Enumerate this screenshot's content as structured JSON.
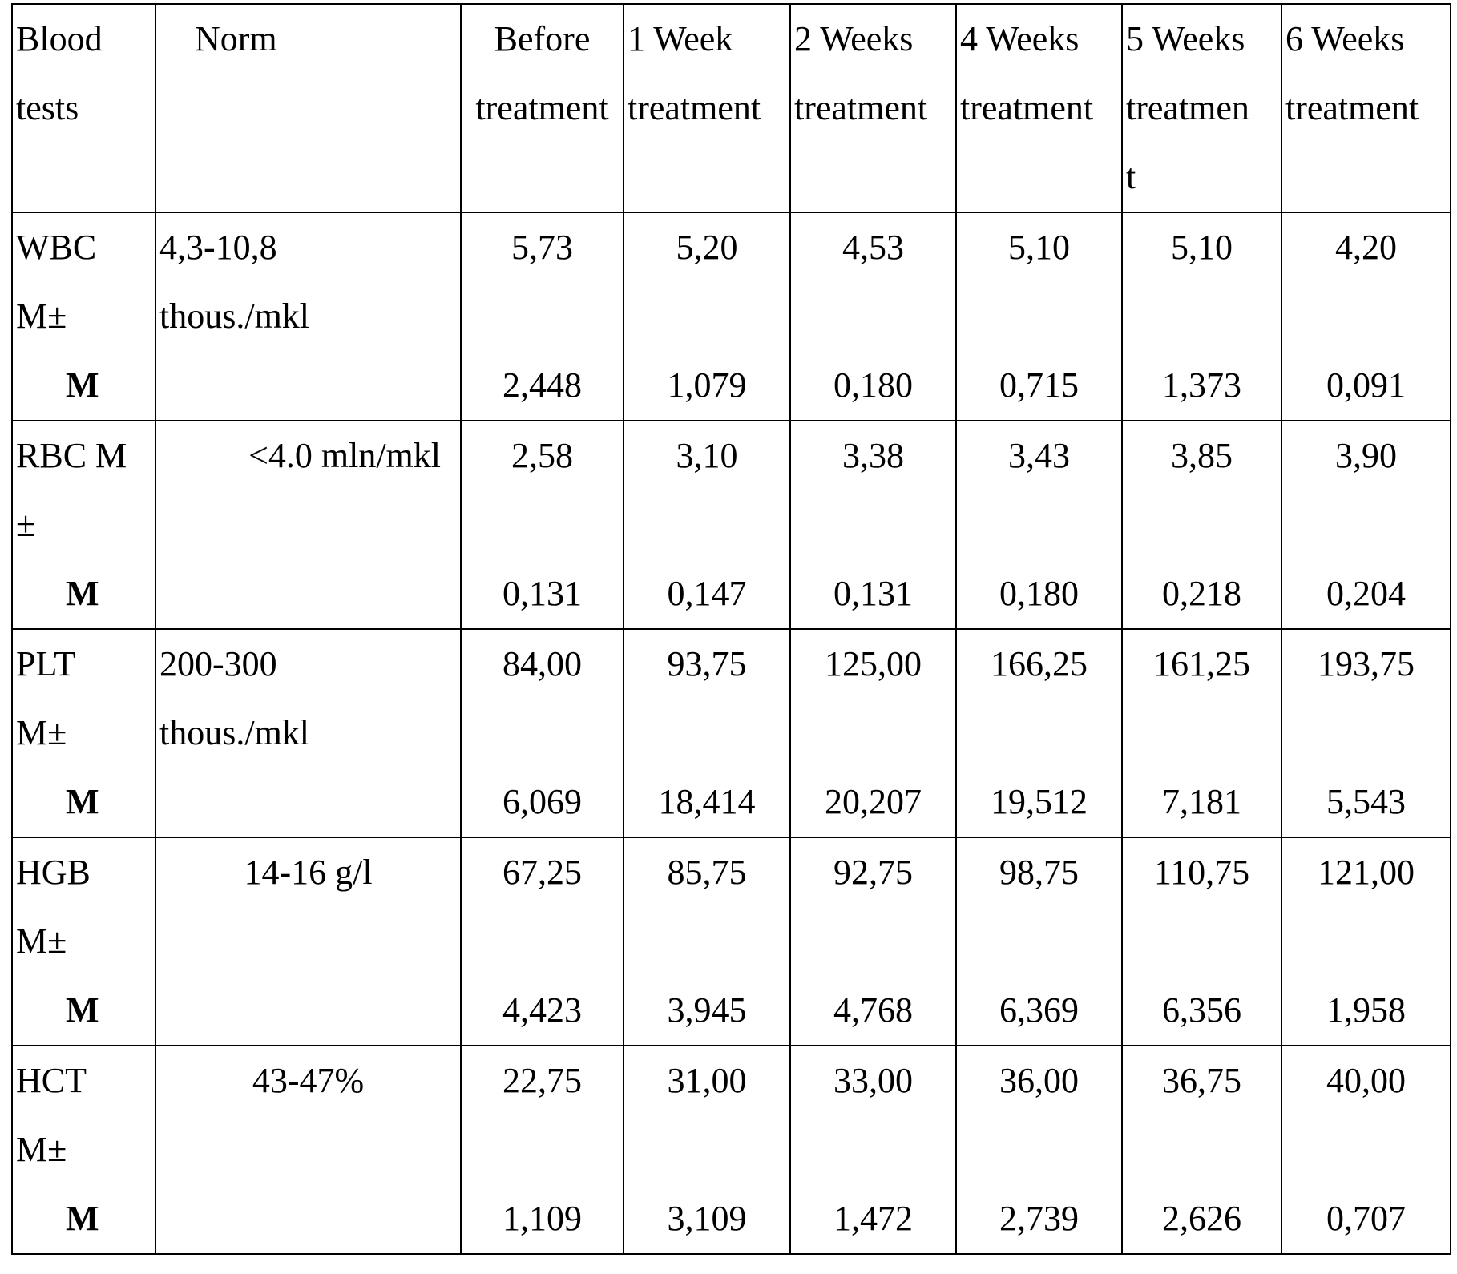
{
  "header": {
    "col0": [
      "Blood",
      "tests"
    ],
    "col1": "Norm",
    "cols": [
      [
        "Before",
        "treatment"
      ],
      [
        "1 Week",
        "treatment"
      ],
      [
        "2 Weeks",
        "treatment"
      ],
      [
        "4 Weeks",
        "treatment"
      ],
      [
        "5 Weeks",
        "treatmen",
        "t"
      ],
      [
        "6 Weeks",
        "treatment"
      ]
    ]
  },
  "rows": [
    {
      "label": [
        "WBC",
        "M±",
        "M"
      ],
      "norm": [
        "4,3-10,8",
        "thous./mkl"
      ],
      "mean": [
        "5,73",
        "5,20",
        "4,53",
        "5,10",
        "5,10",
        "4,20"
      ],
      "err": [
        "2,448",
        "1,079",
        "0,180",
        "0,715",
        "1,373",
        "0,091"
      ]
    },
    {
      "label": [
        "RBC M",
        "±",
        "M"
      ],
      "norm": [
        "<4.0 mln/mkl"
      ],
      "mean": [
        "2,58",
        "3,10",
        "3,38",
        "3,43",
        "3,85",
        "3,90"
      ],
      "err": [
        "0,131",
        "0,147",
        "0,131",
        "0,180",
        "0,218",
        "0,204"
      ]
    },
    {
      "label": [
        "PLT",
        "M±",
        "M"
      ],
      "norm": [
        "200-300",
        "thous./mkl"
      ],
      "mean": [
        "84,00",
        "93,75",
        "125,00",
        "166,25",
        "161,25",
        "193,75"
      ],
      "err": [
        "6,069",
        "18,414",
        "20,207",
        "19,512",
        "7,181",
        "5,543"
      ]
    },
    {
      "label": [
        "HGB",
        "M±",
        "M"
      ],
      "norm": [
        "14-16 g/l"
      ],
      "mean": [
        "67,25",
        "85,75",
        "92,75",
        "98,75",
        "110,75",
        "121,00"
      ],
      "err": [
        "4,423",
        "3,945",
        "4,768",
        "6,369",
        "6,356",
        "1,958"
      ]
    },
    {
      "label": [
        "HCT",
        "M±",
        "M"
      ],
      "norm": [
        "43-47%"
      ],
      "mean": [
        "22,75",
        "31,00",
        "33,00",
        "36,00",
        "36,75",
        "40,00"
      ],
      "err": [
        "1,109",
        "3,109",
        "1,472",
        "2,739",
        "2,626",
        "0,707"
      ]
    }
  ]
}
